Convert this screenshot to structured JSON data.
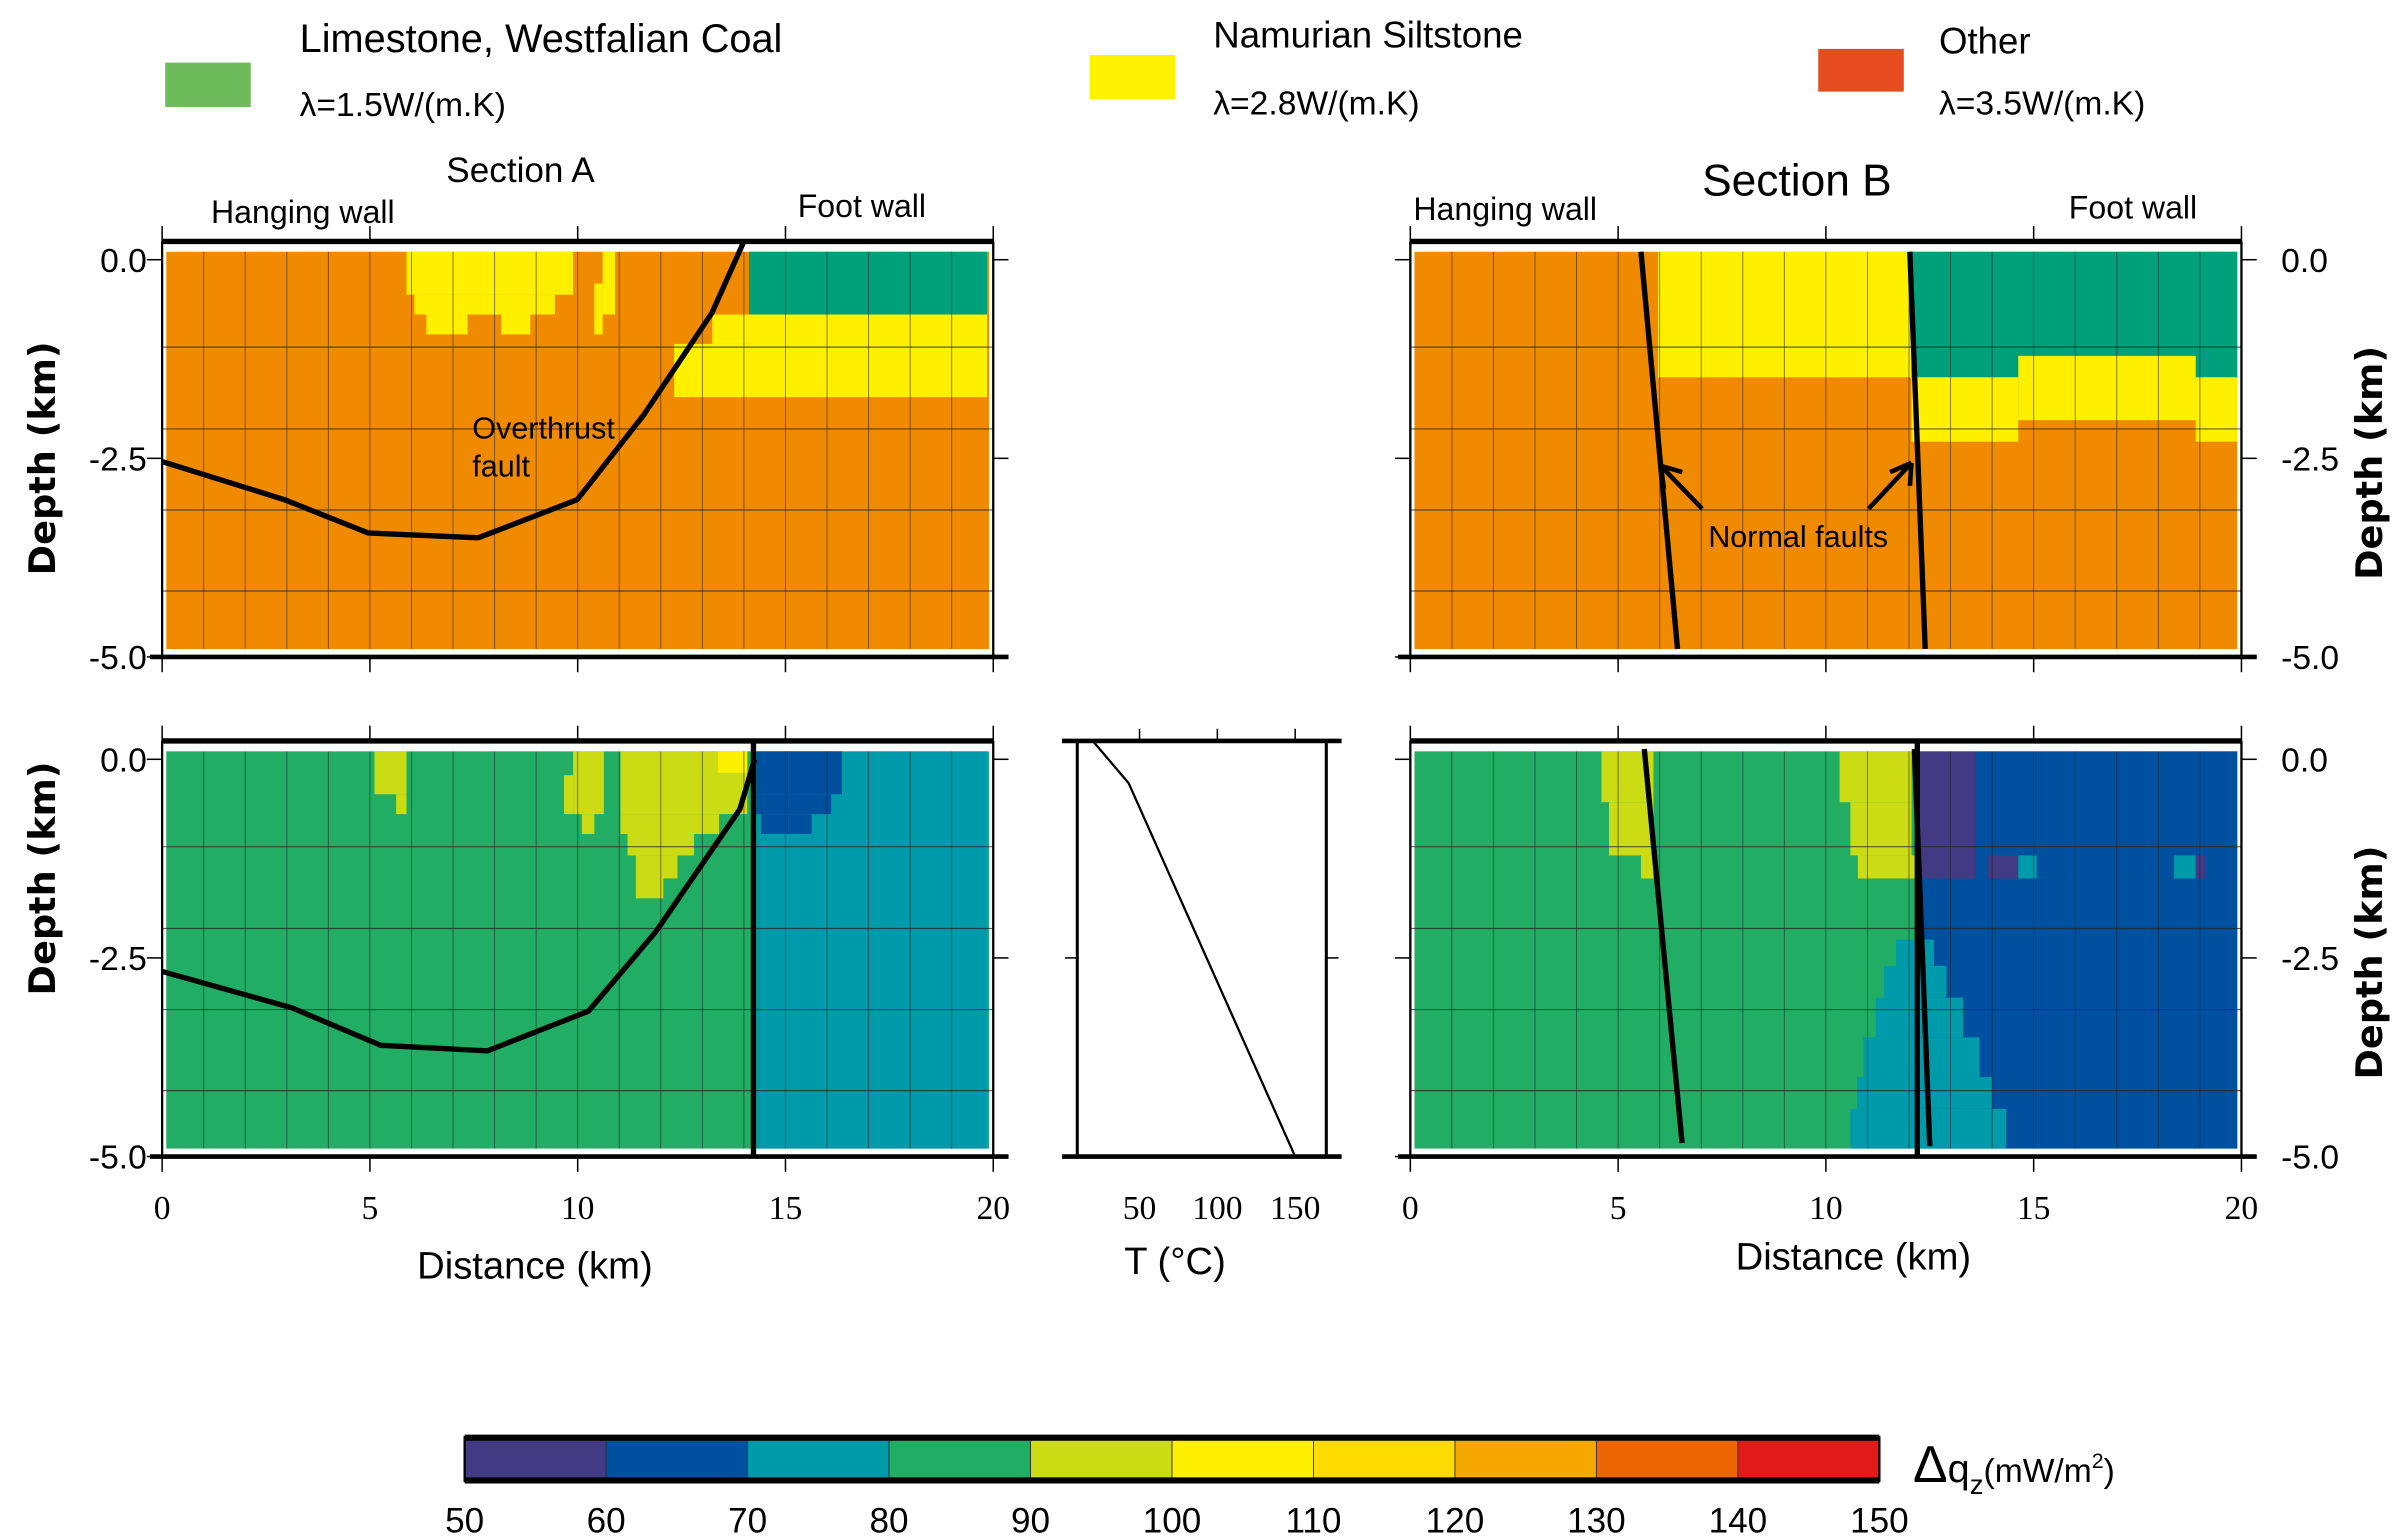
{
  "legend": [
    {
      "name": "Limestone, Westfalian Coal",
      "conductivity": "λ=1.5W/(m.K)",
      "color": "#6DBB5A"
    },
    {
      "name": "Namurian Siltstone",
      "conductivity": "λ=2.8W/(m.K)",
      "color": "#FFF200"
    },
    {
      "name": "Other",
      "conductivity": "λ=3.5W/(m.K)",
      "color": "#E64C20"
    }
  ],
  "labels": {
    "section_a": "Section A",
    "section_b": "Section B",
    "hanging_wall": "Hanging wall",
    "foot_wall": "Foot wall",
    "overthrust_1": "Overthrust",
    "overthrust_2": "fault",
    "normal_faults": "Normal faults",
    "depth_axis": "Depth  (km)",
    "distance_axis": "Distance (km)",
    "temp_axis": "T (°C)"
  },
  "colorbar": {
    "label_delta": "Δ",
    "label_q": "q",
    "label_sub": "z",
    "label_unit": "(mW/m",
    "label_sup": "2",
    "label_close": ")",
    "ticks": [
      "50",
      "60",
      "70",
      "80",
      "90",
      "100",
      "110",
      "120",
      "130",
      "140",
      "150"
    ],
    "colors": [
      "#433A84",
      "#0050A0",
      "#009BAA",
      "#22AD64",
      "#CCDC14",
      "#FFF000",
      "#FFDC00",
      "#F5A800",
      "#EB6600",
      "#E21A1A"
    ]
  },
  "chart_data": [
    {
      "type": "heatmap",
      "panel": "Section A conductivity",
      "xlim": [
        0,
        20
      ],
      "ylim": [
        -5,
        0
      ],
      "x_ticks": [
        "0",
        "5",
        "10",
        "15",
        "20"
      ],
      "y_ticks": [
        "0.0",
        "-2.5",
        "-5.0"
      ],
      "class_colors": {
        "limestone": "#00A07A",
        "siltstone": "#FFF000",
        "other": "#F08A00"
      },
      "regions": [
        [
          0.1,
          19.9,
          0.1,
          -4.9,
          "other"
        ],
        [
          5.88,
          9.89,
          0.1,
          -0.44,
          "siltstone"
        ],
        [
          6.07,
          9.45,
          -0.44,
          -0.69,
          "siltstone"
        ],
        [
          6.36,
          7.35,
          -0.69,
          -0.94,
          "siltstone"
        ],
        [
          8.16,
          8.86,
          -0.69,
          -0.94,
          "siltstone"
        ],
        [
          10.6,
          10.9,
          0.1,
          -0.69,
          "siltstone"
        ],
        [
          10.4,
          10.6,
          -0.3,
          -0.94,
          "siltstone"
        ],
        [
          14.12,
          19.85,
          0.1,
          -0.69,
          "limestone"
        ],
        [
          14.12,
          19.85,
          -0.69,
          -1.73,
          "siltstone"
        ],
        [
          13.24,
          14.12,
          -0.69,
          -1.06,
          "siltstone"
        ],
        [
          12.32,
          14.12,
          -1.06,
          -1.73,
          "siltstone"
        ]
      ],
      "faults": [
        [
          [
            0,
            -2.54
          ],
          [
            2.94,
            -3.02
          ],
          [
            4.96,
            -3.44
          ],
          [
            7.61,
            -3.5
          ],
          [
            9.99,
            -3.02
          ],
          [
            11.58,
            -1.96
          ],
          [
            13.23,
            -0.67
          ],
          [
            14.0,
            0.23
          ]
        ]
      ]
    },
    {
      "type": "heatmap",
      "panel": "Section B conductivity",
      "xlim": [
        0,
        20
      ],
      "ylim": [
        -5,
        0
      ],
      "y_ticks": [
        "0.0",
        "-2.5",
        "-5.0"
      ],
      "class_colors": {
        "limestone": "#00A07A",
        "siltstone": "#FFF000",
        "other": "#F08A00"
      },
      "regions": [
        [
          0.1,
          19.9,
          0.1,
          -4.9,
          "other"
        ],
        [
          5.96,
          12.06,
          0.1,
          -1.48,
          "siltstone"
        ],
        [
          12.06,
          19.9,
          0.1,
          -1.48,
          "limestone"
        ],
        [
          12.06,
          14.63,
          -1.48,
          -2.29,
          "siltstone"
        ],
        [
          18.9,
          19.9,
          -1.48,
          -2.29,
          "siltstone"
        ],
        [
          14.63,
          18.9,
          -1.21,
          -2.02,
          "siltstone"
        ]
      ],
      "faults": [
        [
          [
            5.55,
            0.1
          ],
          [
            6.43,
            -4.9
          ]
        ],
        [
          [
            12.02,
            0.1
          ],
          [
            12.39,
            -4.9
          ]
        ]
      ]
    },
    {
      "type": "heatmap",
      "panel": "Section A heat flow anomaly",
      "xlim": [
        0,
        20
      ],
      "ylim": [
        -5,
        0
      ],
      "x_ticks": [
        "0",
        "5",
        "10",
        "15",
        "20"
      ],
      "y_ticks": [
        "0.0",
        "-2.5",
        "-5.0"
      ],
      "value_unit": "mW/m2",
      "regions": [
        [
          0.1,
          19.9,
          0.1,
          -4.9,
          85
        ],
        [
          5.11,
          5.88,
          0.1,
          -0.44,
          95
        ],
        [
          5.63,
          5.88,
          -0.44,
          -0.69,
          95
        ],
        [
          9.89,
          10.63,
          0.1,
          -0.69,
          95
        ],
        [
          9.67,
          9.89,
          -0.2,
          -0.69,
          95
        ],
        [
          10.1,
          10.4,
          -0.69,
          -0.94,
          95
        ],
        [
          11.03,
          14.08,
          0.1,
          -0.69,
          95
        ],
        [
          11.03,
          13.4,
          -0.69,
          -0.94,
          95
        ],
        [
          11.2,
          12.8,
          -0.94,
          -1.21,
          95
        ],
        [
          11.4,
          12.4,
          -1.21,
          -1.5,
          95
        ],
        [
          11.4,
          12.06,
          -1.5,
          -1.75,
          95
        ],
        [
          13.38,
          14.08,
          0.1,
          -0.17,
          105
        ],
        [
          14.3,
          19.85,
          0.1,
          -4.9,
          75
        ],
        [
          14.3,
          16.36,
          0.1,
          -0.44,
          65
        ],
        [
          14.3,
          16.1,
          -0.44,
          -0.69,
          65
        ],
        [
          14.41,
          15.63,
          -0.69,
          -0.94,
          65
        ]
      ],
      "faults": [
        [
          [
            0,
            -2.67
          ],
          [
            3.13,
            -3.13
          ],
          [
            5.26,
            -3.6
          ],
          [
            7.83,
            -3.67
          ],
          [
            10.26,
            -3.17
          ],
          [
            11.88,
            -2.17
          ],
          [
            13.9,
            -0.63
          ],
          [
            14.26,
            0
          ]
        ],
        [
          [
            14.23,
            0.23
          ],
          [
            14.23,
            -5.0
          ]
        ]
      ]
    },
    {
      "type": "line",
      "panel": "Temperature profile",
      "xlim": [
        10,
        170
      ],
      "ylim": [
        -5,
        0.23
      ],
      "x_ticks": [
        "50",
        "100",
        "150"
      ],
      "x_tick_values": [
        50,
        100,
        150
      ],
      "points": [
        [
          20,
          0.23
        ],
        [
          43,
          -0.3
        ],
        [
          150,
          -5.0
        ]
      ]
    },
    {
      "type": "heatmap",
      "panel": "Section B heat flow anomaly",
      "xlim": [
        0,
        20
      ],
      "ylim": [
        -5,
        0
      ],
      "x_ticks": [
        "0",
        "5",
        "10",
        "15",
        "20"
      ],
      "y_ticks": [
        "0.0",
        "-2.5",
        "-5.0"
      ],
      "value_unit": "mW/m2",
      "regions": [
        [
          0.1,
          19.9,
          0.1,
          -4.9,
          85
        ],
        [
          4.6,
          5.85,
          0.1,
          -0.54,
          95
        ],
        [
          4.78,
          5.85,
          -0.54,
          -1.21,
          95
        ],
        [
          5.55,
          5.85,
          -1.21,
          -1.5,
          95
        ],
        [
          10.33,
          12.06,
          0.1,
          -0.54,
          95
        ],
        [
          10.59,
          12.06,
          -0.54,
          -1.21,
          95
        ],
        [
          10.77,
          12.21,
          -1.21,
          -1.5,
          95
        ],
        [
          12.21,
          19.9,
          -1.5,
          -4.9,
          65
        ],
        [
          13.6,
          19.9,
          0.1,
          -1.5,
          65
        ],
        [
          12.21,
          13.6,
          0.1,
          -1.5,
          55
        ],
        [
          13.9,
          14.63,
          -1.21,
          -1.5,
          55
        ],
        [
          14.63,
          15.07,
          -1.21,
          -1.5,
          75
        ],
        [
          18.38,
          18.9,
          -1.21,
          -1.5,
          75
        ],
        [
          18.9,
          19.12,
          -1.21,
          -1.5,
          55
        ],
        [
          11.69,
          12.6,
          -2.27,
          -2.6,
          75
        ],
        [
          11.4,
          12.9,
          -2.6,
          -3.0,
          75
        ],
        [
          11.2,
          13.3,
          -3.0,
          -3.5,
          75
        ],
        [
          10.9,
          13.7,
          -3.5,
          -4.0,
          75
        ],
        [
          10.75,
          14.0,
          -4.0,
          -4.4,
          75
        ],
        [
          10.59,
          14.34,
          -4.4,
          -4.9,
          75
        ]
      ],
      "faults": [
        [
          [
            5.63,
            0.13
          ],
          [
            6.54,
            -4.83
          ]
        ],
        [
          [
            12.13,
            0.13
          ],
          [
            12.5,
            -4.87
          ]
        ],
        [
          [
            12.2,
            0.23
          ],
          [
            12.2,
            -5.0
          ]
        ]
      ]
    }
  ]
}
